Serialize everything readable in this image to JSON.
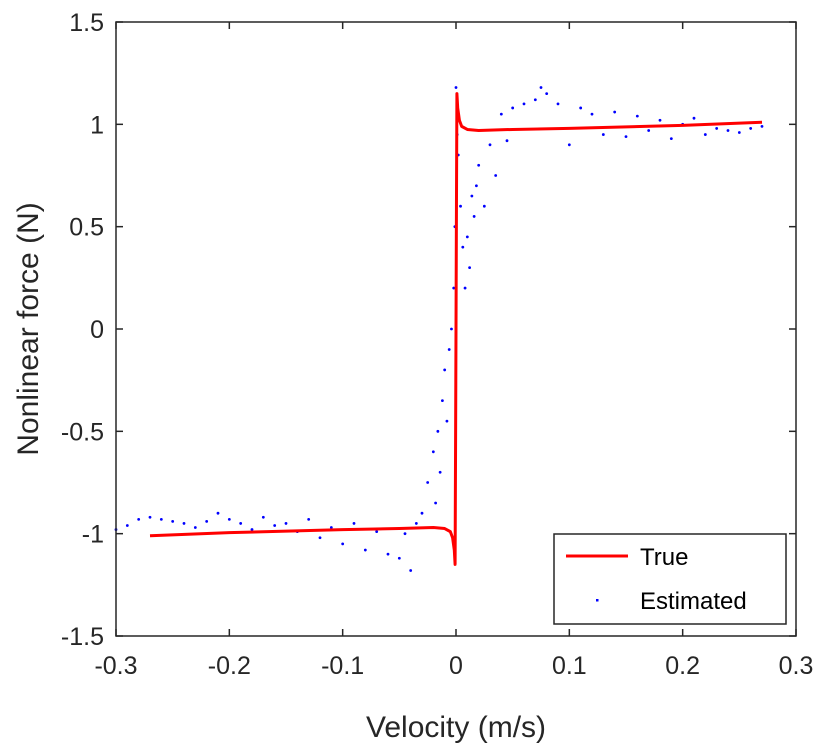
{
  "chart_data": {
    "type": "line",
    "xlabel": "Velocity (m/s)",
    "ylabel": "Nonlinear force (N)",
    "xlim": [
      -0.3,
      0.3
    ],
    "ylim": [
      -1.5,
      1.5
    ],
    "xticks": [
      -0.3,
      -0.2,
      -0.1,
      0,
      0.1,
      0.2,
      0.3
    ],
    "xtick_labels": [
      "-0.3",
      "-0.2",
      "-0.1",
      "0",
      "0.1",
      "0.2",
      "0.3"
    ],
    "yticks": [
      -1.5,
      -1,
      -0.5,
      0,
      0.5,
      1,
      1.5
    ],
    "ytick_labels": [
      "-1.5",
      "-1",
      "-0.5",
      "0",
      "0.5",
      "1",
      "1.5"
    ],
    "grid": false,
    "legend_position": "bottom-right",
    "series": [
      {
        "name": "True",
        "style": "line",
        "color": "#ff0000",
        "x": [
          -0.27,
          -0.2,
          -0.1,
          -0.05,
          -0.02,
          -0.01,
          -0.005,
          -0.003,
          -0.0015,
          -0.0008,
          -0.0004,
          0,
          0.0004,
          0.0008,
          0.0015,
          0.003,
          0.005,
          0.01,
          0.02,
          0.05,
          0.1,
          0.2,
          0.27
        ],
        "y": [
          -1.01,
          -0.995,
          -0.98,
          -0.975,
          -0.97,
          -0.975,
          -0.99,
          -1.02,
          -1.08,
          -1.15,
          -0.6,
          0,
          0.6,
          1.15,
          1.08,
          1.02,
          0.99,
          0.975,
          0.97,
          0.975,
          0.98,
          0.995,
          1.01
        ]
      },
      {
        "name": "Estimated",
        "style": "points",
        "color": "#0000ff",
        "x": [
          -0.3,
          -0.29,
          -0.28,
          -0.27,
          -0.26,
          -0.25,
          -0.24,
          -0.23,
          -0.22,
          -0.21,
          -0.2,
          -0.19,
          -0.18,
          -0.17,
          -0.16,
          -0.15,
          -0.14,
          -0.13,
          -0.12,
          -0.11,
          -0.1,
          -0.09,
          -0.08,
          -0.07,
          -0.06,
          -0.05,
          -0.045,
          -0.04,
          -0.035,
          -0.03,
          -0.025,
          -0.02,
          -0.018,
          -0.016,
          -0.014,
          -0.012,
          -0.01,
          -0.008,
          -0.006,
          -0.004,
          -0.002,
          -0.001,
          0,
          0.001,
          0.002,
          0.004,
          0.006,
          0.008,
          0.01,
          0.012,
          0.014,
          0.016,
          0.018,
          0.02,
          0.025,
          0.03,
          0.035,
          0.04,
          0.045,
          0.05,
          0.06,
          0.07,
          0.075,
          0.08,
          0.09,
          0.1,
          0.11,
          0.12,
          0.13,
          0.14,
          0.15,
          0.16,
          0.17,
          0.18,
          0.19,
          0.2,
          0.21,
          0.22,
          0.23,
          0.24,
          0.25,
          0.26,
          0.27
        ],
        "y": [
          -0.98,
          -0.96,
          -0.93,
          -0.92,
          -0.93,
          -0.94,
          -0.95,
          -0.97,
          -0.94,
          -0.9,
          -0.93,
          -0.95,
          -0.98,
          -0.92,
          -0.96,
          -0.95,
          -0.99,
          -0.93,
          -1.02,
          -0.97,
          -1.05,
          -0.95,
          -1.08,
          -0.99,
          -1.1,
          -1.12,
          -1.0,
          -1.18,
          -0.95,
          -0.9,
          -0.75,
          -0.6,
          -0.85,
          -0.5,
          -0.7,
          -0.35,
          -0.2,
          -0.45,
          -0.1,
          0.0,
          0.2,
          0.5,
          1.18,
          0.95,
          0.85,
          0.6,
          0.4,
          0.2,
          0.45,
          0.3,
          0.65,
          0.55,
          0.7,
          0.8,
          0.6,
          0.9,
          0.75,
          1.05,
          0.92,
          1.08,
          1.1,
          1.12,
          1.18,
          1.15,
          1.1,
          0.9,
          1.08,
          1.05,
          0.95,
          1.06,
          0.94,
          1.04,
          0.97,
          1.02,
          0.93,
          1.0,
          1.03,
          0.95,
          0.98,
          0.97,
          0.96,
          0.98,
          0.99
        ]
      }
    ]
  }
}
